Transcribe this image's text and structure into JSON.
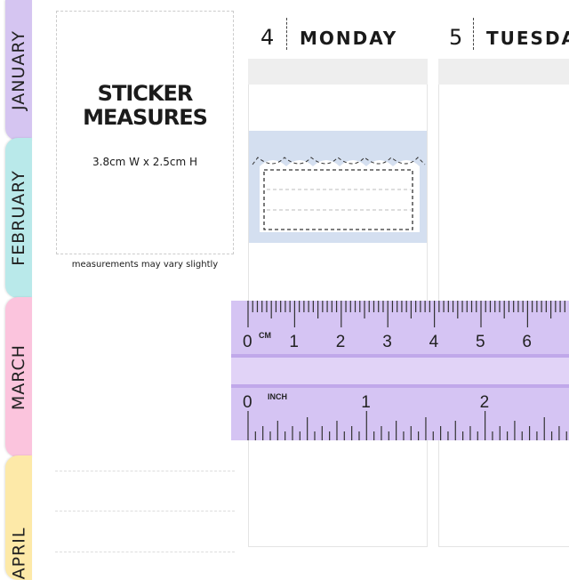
{
  "tabs": [
    {
      "label": "JANUARY",
      "color": "#d5c5f1"
    },
    {
      "label": "FEBRUARY",
      "color": "#b9e9ea"
    },
    {
      "label": "MARCH",
      "color": "#fbc4dd"
    },
    {
      "label": "APRIL",
      "color": "#fde9a8"
    }
  ],
  "info": {
    "title_line1": "STICKER",
    "title_line2": "MEASURES",
    "dimensions": "3.8cm W  x 2.5cm H",
    "note": "measurements may vary slightly"
  },
  "days": [
    {
      "number": "4",
      "name": "MONDAY"
    },
    {
      "number": "5",
      "name": "TUESDAY"
    }
  ],
  "sticker": {
    "background": "#d4dff0"
  },
  "ruler": {
    "color": "#d5c4f3",
    "cm_unit": "CM",
    "inch_unit": "INCH",
    "cm_labels": [
      "0",
      "1",
      "2",
      "3",
      "4",
      "5",
      "6"
    ],
    "inch_labels": [
      "0",
      "1",
      "2"
    ]
  }
}
